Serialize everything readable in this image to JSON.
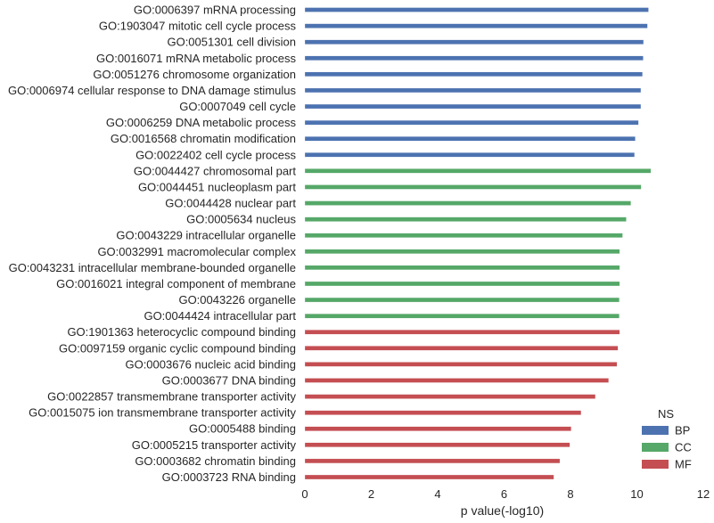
{
  "chart_data": {
    "type": "bar",
    "orientation": "horizontal",
    "xlabel": "p value(-log10)",
    "xlim": [
      0,
      12
    ],
    "xticks": [
      "0",
      "2",
      "4",
      "6",
      "8",
      "10",
      "12"
    ],
    "grid": false,
    "legend": {
      "title": "NS",
      "placement": "bottom-right",
      "entries": [
        {
          "key": "BP",
          "label": "BP",
          "color": "#4c72b0"
        },
        {
          "key": "CC",
          "label": "CC",
          "color": "#55a868"
        },
        {
          "key": "MF",
          "label": "MF",
          "color": "#c44e52"
        }
      ]
    },
    "bars": [
      {
        "label": "GO:0006397 mRNA processing",
        "ns": "BP",
        "value": 10.35
      },
      {
        "label": "GO:1903047 mitotic cell cycle process",
        "ns": "BP",
        "value": 10.32
      },
      {
        "label": "GO:0051301 cell division",
        "ns": "BP",
        "value": 10.2
      },
      {
        "label": "GO:0016071 mRNA metabolic process",
        "ns": "BP",
        "value": 10.19
      },
      {
        "label": "GO:0051276 chromosome organization",
        "ns": "BP",
        "value": 10.17
      },
      {
        "label": "GO:0006974 cellular response to DNA damage stimulus",
        "ns": "BP",
        "value": 10.12
      },
      {
        "label": "GO:0007049 cell cycle",
        "ns": "BP",
        "value": 10.12
      },
      {
        "label": "GO:0006259 DNA metabolic process",
        "ns": "BP",
        "value": 10.05
      },
      {
        "label": "GO:0016568 chromatin modification",
        "ns": "BP",
        "value": 9.95
      },
      {
        "label": "GO:0022402 cell cycle process",
        "ns": "BP",
        "value": 9.93
      },
      {
        "label": "GO:0044427 chromosomal part",
        "ns": "CC",
        "value": 10.42
      },
      {
        "label": "GO:0044451 nucleoplasm part",
        "ns": "CC",
        "value": 10.13
      },
      {
        "label": "GO:0044428 nuclear part",
        "ns": "CC",
        "value": 9.82
      },
      {
        "label": "GO:0005634 nucleus",
        "ns": "CC",
        "value": 9.68
      },
      {
        "label": "GO:0043229 intracellular organelle",
        "ns": "CC",
        "value": 9.57
      },
      {
        "label": "GO:0032991 macromolecular complex",
        "ns": "CC",
        "value": 9.48
      },
      {
        "label": "GO:0043231 intracellular membrane-bounded organelle",
        "ns": "CC",
        "value": 9.48
      },
      {
        "label": "GO:0016021 integral component of membrane",
        "ns": "CC",
        "value": 9.48
      },
      {
        "label": "GO:0043226 organelle",
        "ns": "CC",
        "value": 9.47
      },
      {
        "label": "GO:0044424 intracellular part",
        "ns": "CC",
        "value": 9.47
      },
      {
        "label": "GO:1901363 heterocyclic compound binding",
        "ns": "MF",
        "value": 9.48
      },
      {
        "label": "GO:0097159 organic cyclic compound binding",
        "ns": "MF",
        "value": 9.43
      },
      {
        "label": "GO:0003676 nucleic acid binding",
        "ns": "MF",
        "value": 9.4
      },
      {
        "label": "GO:0003677 DNA binding",
        "ns": "MF",
        "value": 9.15
      },
      {
        "label": "GO:0022857 transmembrane transporter activity",
        "ns": "MF",
        "value": 8.75
      },
      {
        "label": "GO:0015075 ion transmembrane transporter activity",
        "ns": "MF",
        "value": 8.32
      },
      {
        "label": "GO:0005488 binding",
        "ns": "MF",
        "value": 8.02
      },
      {
        "label": "GO:0005215 transporter activity",
        "ns": "MF",
        "value": 7.98
      },
      {
        "label": "GO:0003682 chromatin binding",
        "ns": "MF",
        "value": 7.68
      },
      {
        "label": "GO:0003723 RNA binding",
        "ns": "MF",
        "value": 7.5
      }
    ]
  }
}
